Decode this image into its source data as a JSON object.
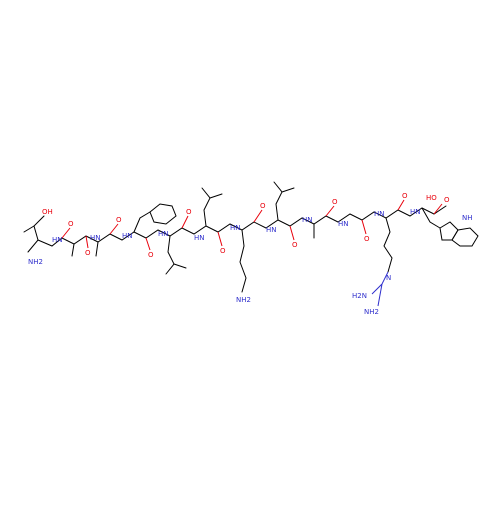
{
  "molecule": {
    "colors": {
      "carbon": "#000000",
      "oxygen": "#e8000b",
      "nitrogen": "#2e2ecc",
      "background": "#ffffff"
    },
    "labels": {
      "oh": "OH",
      "nh2_thr": "NH2",
      "o_thr": "O",
      "hn_ala1": "HN",
      "o_ala1": "O",
      "hn_ala2": "HN",
      "o_ala2": "O",
      "hn_phe": "HN",
      "o_phe": "O",
      "hn_leu1": "HN",
      "o_leu1": "O",
      "hn_leu2": "HN",
      "o_leu2": "O",
      "hn_lys": "HN",
      "o_lys": "O",
      "nh2_lys": "NH2",
      "hn_leu3": "HN",
      "o_leu3": "O",
      "hn_ala3": "HN",
      "o_ala3": "O",
      "hn_gly": "HN",
      "o_gly": "O",
      "hn_arg": "HN",
      "o_arg": "O",
      "n_guan": "N",
      "h2n_guan": "H2N",
      "nh2_guan": "NH2",
      "hn_trp": "HN",
      "ho_acid": "HO",
      "o_acid": "O",
      "nh_indole": "NH"
    }
  }
}
